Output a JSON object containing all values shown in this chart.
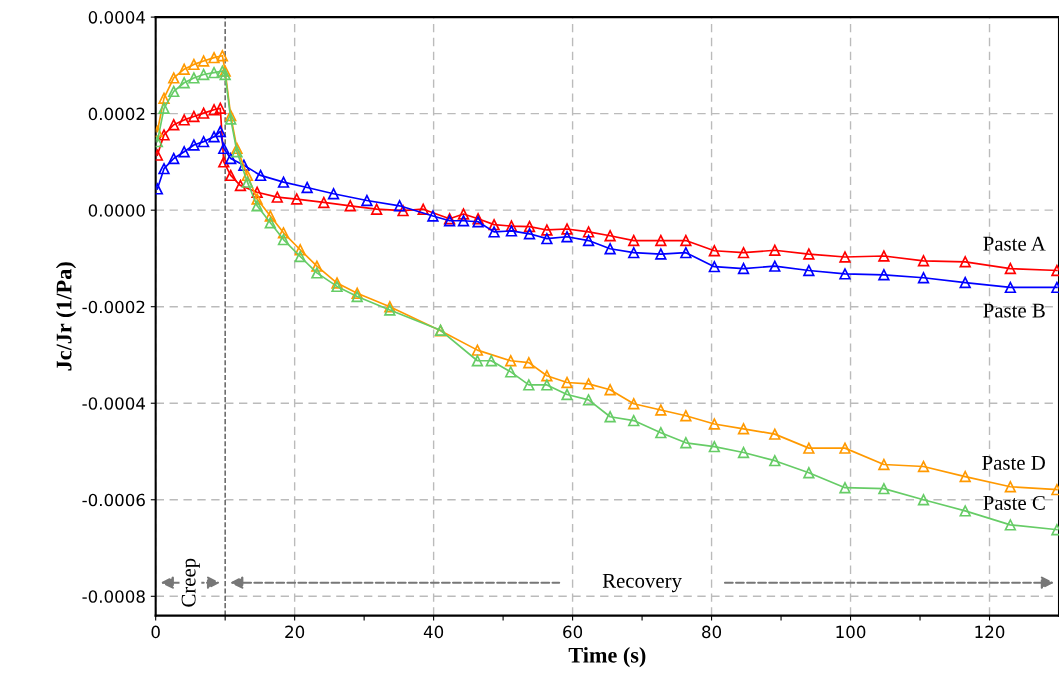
{
  "chart_data": {
    "type": "line",
    "xlabel": "Time (s)",
    "ylabel": "Jc/Jr (1/Pa)",
    "xlim": [
      0,
      130
    ],
    "ylim": [
      -0.00084,
      0.0004
    ],
    "xticks": [
      0,
      {
        "value": 10,
        "label": null
      },
      20,
      {
        "value": 30,
        "label": null
      },
      40,
      {
        "value": 50,
        "label": null
      },
      60,
      {
        "value": 70,
        "label": null
      },
      80,
      {
        "value": 90,
        "label": null
      },
      100,
      {
        "value": 110,
        "label": null
      },
      120
    ],
    "yticks": [
      {
        "value": -0.0008,
        "label": "-0.0008"
      },
      {
        "value": -0.0006,
        "label": "-0.0006"
      },
      {
        "value": -0.0004,
        "label": "-0.0004"
      },
      {
        "value": -0.0002,
        "label": "-0.0002"
      },
      {
        "value": 0,
        "label": "0.0000"
      },
      {
        "value": 0.0002,
        "label": "0.0002"
      },
      {
        "value": 0.0004,
        "label": "0.0004"
      }
    ],
    "grid": true,
    "marker": "triangle",
    "line_style": "solid",
    "legend": false,
    "ref_lines": [
      {
        "axis": "x",
        "value": 10,
        "color": "#555555",
        "line_style": "dashed"
      }
    ],
    "annotations": [
      "Creep",
      "Recovery"
    ],
    "series": [
      {
        "name": "Paste A",
        "color": "#ff0000",
        "x": [
          0.24,
          1.2,
          2.6,
          4.1,
          5.5,
          6.9,
          8.4,
          9.3,
          9.8,
          10.8,
          12.2,
          14.6,
          17.5,
          20.3,
          24.2,
          28,
          31.8,
          35.6,
          38.5,
          42.3,
          44.3,
          46.4,
          48.7,
          51.2,
          53.8,
          56.3,
          59.2,
          62.3,
          65.4,
          68.8,
          72.7,
          76.3,
          80.4,
          84.6,
          89.1,
          94.0,
          99.2,
          104.8,
          110.5,
          116.5,
          123.0,
          129.7
        ],
        "values": [
          0.000114,
          0.000156,
          0.000177,
          0.000187,
          0.000194,
          0.000201,
          0.000208,
          0.000211,
          0.0001,
          7.2e-05,
          5.1e-05,
          3.7e-05,
          2.7e-05,
          2.3e-05,
          1.6e-05,
          9e-06,
          2e-06,
          -1e-06,
          2e-06,
          -1.78e-05,
          -8e-06,
          -1.78e-05,
          -3e-05,
          -3.3e-05,
          -3.4e-05,
          -4.1e-05,
          -3.9e-05,
          -4.5e-05,
          -5.3e-05,
          -6.3e-05,
          -6.3e-05,
          -6.3e-05,
          -8.4e-05,
          -8.8e-05,
          -8.3e-05,
          -9.1e-05,
          -9.7e-05,
          -9.5e-05,
          -0.000105,
          -0.000107,
          -0.000121,
          -0.000125
        ]
      },
      {
        "name": "Paste B",
        "color": "#0000ff",
        "x": [
          0.24,
          1.2,
          2.6,
          4.1,
          5.5,
          6.9,
          8.4,
          9.3,
          9.8,
          10.8,
          12.7,
          15.1,
          18.4,
          21.8,
          25.6,
          30.4,
          35.1,
          39.9,
          42.3,
          44.3,
          46.4,
          48.7,
          51.2,
          53.8,
          56.3,
          59.2,
          62.3,
          65.4,
          68.8,
          72.7,
          76.3,
          80.4,
          84.6,
          89.1,
          94.0,
          99.2,
          104.8,
          110.5,
          116.5,
          123.0,
          129.7
        ],
        "values": [
          4.4e-05,
          8.6e-05,
          0.000107,
          0.000121,
          0.000135,
          0.000142,
          0.000152,
          0.000163,
          0.000128,
          0.000107,
          9.3e-05,
          7.2e-05,
          5.8e-05,
          4.7e-05,
          3.4e-05,
          2e-05,
          9e-06,
          -1.2e-05,
          -2.2e-05,
          -2.2e-05,
          -2.4e-05,
          -4.5e-05,
          -4.3e-05,
          -4.9e-05,
          -5.9e-05,
          -5.5e-05,
          -6.3e-05,
          -8e-05,
          -8.8e-05,
          -9.1e-05,
          -8.8e-05,
          -0.000117,
          -0.000121,
          -0.000116,
          -0.000125,
          -0.000132,
          -0.000134,
          -0.00014,
          -0.00015,
          -0.00016,
          -0.00016
        ]
      },
      {
        "name": "Paste D",
        "color": "#ff9900",
        "x": [
          0.24,
          1.2,
          2.6,
          4.1,
          5.5,
          6.9,
          8.4,
          9.6,
          10.0,
          10.8,
          11.7,
          13.2,
          14.6,
          16.5,
          18.4,
          20.8,
          23.2,
          26.1,
          29,
          33.7,
          41,
          46.3,
          51.1,
          53.7,
          56.3,
          59.2,
          62.3,
          65.4,
          68.8,
          72.7,
          76.3,
          80.4,
          84.6,
          89.1,
          94.0,
          99.2,
          104.8,
          110.5,
          116.5,
          123.0,
          129.7
        ],
        "values": [
          0.000163,
          0.000232,
          0.000274,
          0.000292,
          0.000302,
          0.000309,
          0.000316,
          0.00032,
          0.000288,
          0.000196,
          0.000128,
          7.2e-05,
          2.3e-05,
          -1.2e-05,
          -4.7e-05,
          -8.2e-05,
          -0.000116,
          -0.000151,
          -0.000172,
          -0.0002,
          -0.00025,
          -0.00029,
          -0.000312,
          -0.000316,
          -0.000343,
          -0.000357,
          -0.00036,
          -0.000372,
          -0.000401,
          -0.000414,
          -0.000426,
          -0.000443,
          -0.000453,
          -0.000464,
          -0.000493,
          -0.000493,
          -0.000527,
          -0.000531,
          -0.000552,
          -0.000573,
          -0.000579
        ]
      },
      {
        "name": "Paste C",
        "color": "#66cc66",
        "x": [
          0.24,
          1.2,
          2.6,
          4.1,
          5.5,
          6.9,
          8.4,
          9.6,
          10.0,
          10.8,
          11.7,
          13.2,
          14.6,
          16.5,
          18.4,
          20.8,
          23.2,
          26.1,
          29,
          33.7,
          41,
          46.3,
          48.3,
          51.1,
          53.7,
          56.3,
          59.2,
          62.3,
          65.4,
          68.8,
          72.7,
          76.3,
          80.4,
          84.6,
          89.1,
          94.0,
          99.2,
          104.8,
          110.5,
          116.5,
          123.0,
          129.7
        ],
        "values": [
          0.000142,
          0.000211,
          0.000246,
          0.000264,
          0.000274,
          0.000281,
          0.000285,
          0.000288,
          0.000281,
          0.000189,
          0.000121,
          5.8e-05,
          9e-06,
          -2.6e-05,
          -6.1e-05,
          -9.6e-05,
          -0.00013,
          -0.000158,
          -0.000179,
          -0.000207,
          -0.000249,
          -0.000312,
          -0.000312,
          -0.000335,
          -0.000362,
          -0.000362,
          -0.000382,
          -0.000393,
          -0.000428,
          -0.000436,
          -0.000461,
          -0.000482,
          -0.00049,
          -0.000502,
          -0.000519,
          -0.000544,
          -0.000575,
          -0.000577,
          -0.0006,
          -0.000623,
          -0.000652,
          -0.000662
        ]
      }
    ]
  }
}
